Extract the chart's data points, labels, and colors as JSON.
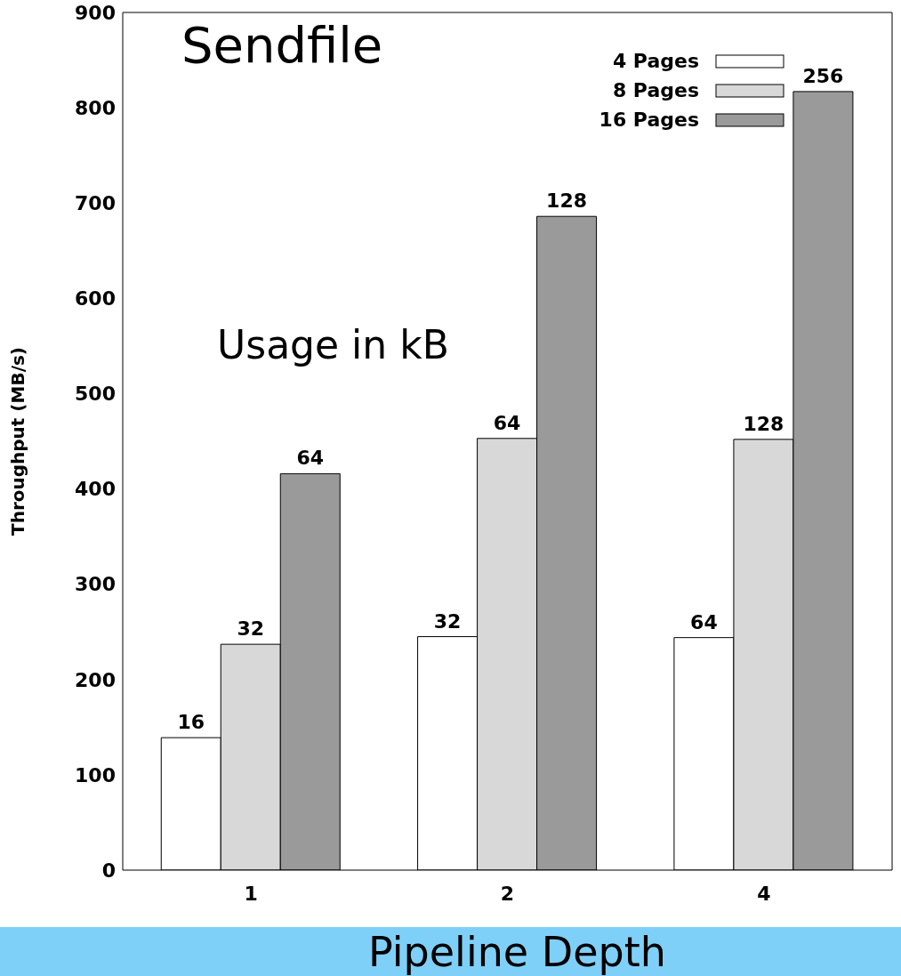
{
  "chart_data": {
    "type": "bar",
    "title": "Sendfile",
    "xlabel": "Pipeline Depth",
    "ylabel": "Throughput (MB/s)",
    "categories": [
      "1",
      "2",
      "4"
    ],
    "series": [
      {
        "name": "4 Pages",
        "color": "#ffffff",
        "values": [
          139,
          245,
          244
        ]
      },
      {
        "name": "8 Pages",
        "color": "#d8d8d8",
        "values": [
          237,
          453,
          452
        ]
      },
      {
        "name": "16 Pages",
        "color": "#9a9a9a",
        "values": [
          416,
          686,
          817
        ]
      }
    ],
    "ylim": [
      0,
      900
    ],
    "yticks": [
      0,
      100,
      200,
      300,
      400,
      500,
      600,
      700,
      800,
      900
    ],
    "grid": false,
    "legend": "top right",
    "annotations": [
      "Usage in kB",
      "16",
      "32",
      "64",
      "32",
      "64",
      "128",
      "64",
      "128",
      "256"
    ]
  }
}
